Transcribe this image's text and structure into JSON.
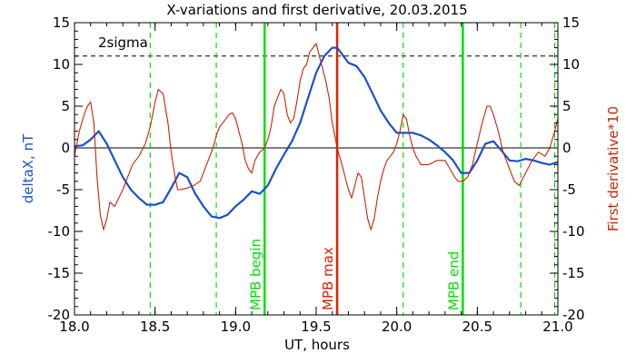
{
  "chart_data": {
    "type": "line",
    "title": "X-variations and first derivative, 20.03.2015",
    "xlabel": "UT, hours",
    "ylabel_left": "deltaX, nT",
    "ylabel_right": "First derivative*10",
    "xlim": [
      18.0,
      21.0
    ],
    "ylim": [
      -20,
      15
    ],
    "x_ticks": [
      "18.0",
      "18.5",
      "19.0",
      "19.5",
      "20.0",
      "20.5",
      "21.0"
    ],
    "y_ticks": [
      "-20",
      "-15",
      "-10",
      "-5",
      "0",
      "5",
      "10",
      "15"
    ],
    "threshold": {
      "label": "2sigma",
      "value": 11
    },
    "zero_line": 0,
    "markers": [
      {
        "label": "MPB begin",
        "x": 19.18,
        "color": "#00e000"
      },
      {
        "label": "MPB max",
        "x": 19.63,
        "color": "#e02000"
      },
      {
        "label": "MPB end",
        "x": 20.41,
        "color": "#00e000"
      }
    ],
    "dashed_markers": [
      18.47,
      18.88,
      20.04,
      20.77,
      20.98
    ],
    "dashed_marker_color": "#00e000",
    "series": [
      {
        "name": "deltaX, nT",
        "color": "#1a50d0",
        "x": [
          18.0,
          18.05,
          18.1,
          18.15,
          18.2,
          18.25,
          18.3,
          18.35,
          18.4,
          18.45,
          18.5,
          18.55,
          18.6,
          18.65,
          18.7,
          18.75,
          18.8,
          18.85,
          18.9,
          18.95,
          19.0,
          19.05,
          19.1,
          19.15,
          19.2,
          19.25,
          19.3,
          19.35,
          19.4,
          19.45,
          19.5,
          19.55,
          19.6,
          19.63,
          19.65,
          19.7,
          19.75,
          19.8,
          19.85,
          19.9,
          19.95,
          20.0,
          20.05,
          20.1,
          20.15,
          20.2,
          20.25,
          20.3,
          20.35,
          20.4,
          20.45,
          20.5,
          20.55,
          20.6,
          20.65,
          20.7,
          20.75,
          20.8,
          20.85,
          20.9,
          20.95,
          21.0
        ],
        "y": [
          0.2,
          0.3,
          1.0,
          2.0,
          0.5,
          -1.5,
          -3.5,
          -5.0,
          -6.0,
          -6.8,
          -6.8,
          -6.5,
          -4.8,
          -3.0,
          -3.5,
          -5.5,
          -7.0,
          -8.2,
          -8.4,
          -8.0,
          -7.0,
          -6.2,
          -5.2,
          -5.5,
          -4.5,
          -2.5,
          -0.8,
          0.8,
          3.0,
          6.0,
          9.0,
          11.0,
          12.0,
          12.0,
          11.5,
          10.2,
          9.8,
          8.5,
          6.5,
          4.5,
          3.0,
          1.8,
          1.8,
          1.8,
          1.5,
          1.0,
          0.3,
          -0.5,
          -1.5,
          -3.0,
          -3.0,
          -1.5,
          0.5,
          0.8,
          -0.3,
          -1.5,
          -1.6,
          -1.3,
          -1.5,
          -1.8,
          -2.0,
          -1.7
        ]
      },
      {
        "name": "First derivative*10",
        "color": "#cc2200",
        "x": [
          18.0,
          18.03,
          18.06,
          18.08,
          18.1,
          18.12,
          18.14,
          18.16,
          18.18,
          18.2,
          18.22,
          18.25,
          18.3,
          18.33,
          18.36,
          18.4,
          18.44,
          18.47,
          18.5,
          18.52,
          18.55,
          18.58,
          18.6,
          18.62,
          18.64,
          18.66,
          18.7,
          18.74,
          18.78,
          18.82,
          18.86,
          18.88,
          18.9,
          18.92,
          18.94,
          18.96,
          18.98,
          19.0,
          19.02,
          19.04,
          19.06,
          19.08,
          19.1,
          19.12,
          19.15,
          19.18,
          19.2,
          19.22,
          19.24,
          19.26,
          19.28,
          19.3,
          19.32,
          19.34,
          19.36,
          19.38,
          19.4,
          19.42,
          19.44,
          19.46,
          19.48,
          19.5,
          19.52,
          19.54,
          19.56,
          19.58,
          19.6,
          19.63,
          19.66,
          19.68,
          19.7,
          19.72,
          19.74,
          19.76,
          19.78,
          19.8,
          19.82,
          19.84,
          19.86,
          19.88,
          19.9,
          19.92,
          19.94,
          19.96,
          19.98,
          20.0,
          20.02,
          20.04,
          20.06,
          20.08,
          20.1,
          20.12,
          20.15,
          20.2,
          20.25,
          20.3,
          20.33,
          20.36,
          20.38,
          20.41,
          20.44,
          20.47,
          20.5,
          20.53,
          20.56,
          20.58,
          20.6,
          20.63,
          20.66,
          20.7,
          20.73,
          20.76,
          20.8,
          20.84,
          20.88,
          20.92,
          20.95,
          20.98,
          21.0
        ],
        "y": [
          -1.0,
          2.0,
          4.0,
          5.0,
          5.5,
          3.0,
          -3.5,
          -8.0,
          -9.8,
          -8.5,
          -6.5,
          -7.0,
          -5.0,
          -3.5,
          -2.0,
          -1.0,
          0.5,
          2.5,
          5.5,
          7.0,
          6.5,
          3.0,
          -0.5,
          -3.0,
          -5.0,
          -5.0,
          -4.8,
          -4.5,
          -4.0,
          -2.0,
          0.0,
          1.5,
          2.5,
          3.0,
          3.5,
          4.0,
          4.2,
          3.5,
          2.0,
          0.5,
          -1.5,
          -2.5,
          -3.0,
          -1.5,
          -0.5,
          0.0,
          1.0,
          2.5,
          5.0,
          6.0,
          7.0,
          6.5,
          4.0,
          3.0,
          3.5,
          5.5,
          8.0,
          9.5,
          10.0,
          11.5,
          12.0,
          12.5,
          11.0,
          9.5,
          8.0,
          6.0,
          3.0,
          0.0,
          -2.0,
          -3.5,
          -5.0,
          -6.0,
          -4.5,
          -3.0,
          -3.5,
          -6.0,
          -8.5,
          -9.8,
          -8.5,
          -6.0,
          -4.0,
          -2.5,
          -1.5,
          -1.0,
          -0.5,
          0.5,
          2.0,
          4.0,
          3.5,
          1.5,
          0.0,
          -1.0,
          -2.0,
          -2.0,
          -1.5,
          -1.5,
          -2.5,
          -3.5,
          -4.0,
          -4.0,
          -3.5,
          -2.0,
          0.5,
          3.0,
          5.0,
          5.0,
          4.0,
          2.0,
          -0.5,
          -2.5,
          -4.0,
          -4.5,
          -3.0,
          -1.5,
          -0.5,
          -1.0,
          0.0,
          2.0,
          3.5
        ]
      }
    ]
  }
}
